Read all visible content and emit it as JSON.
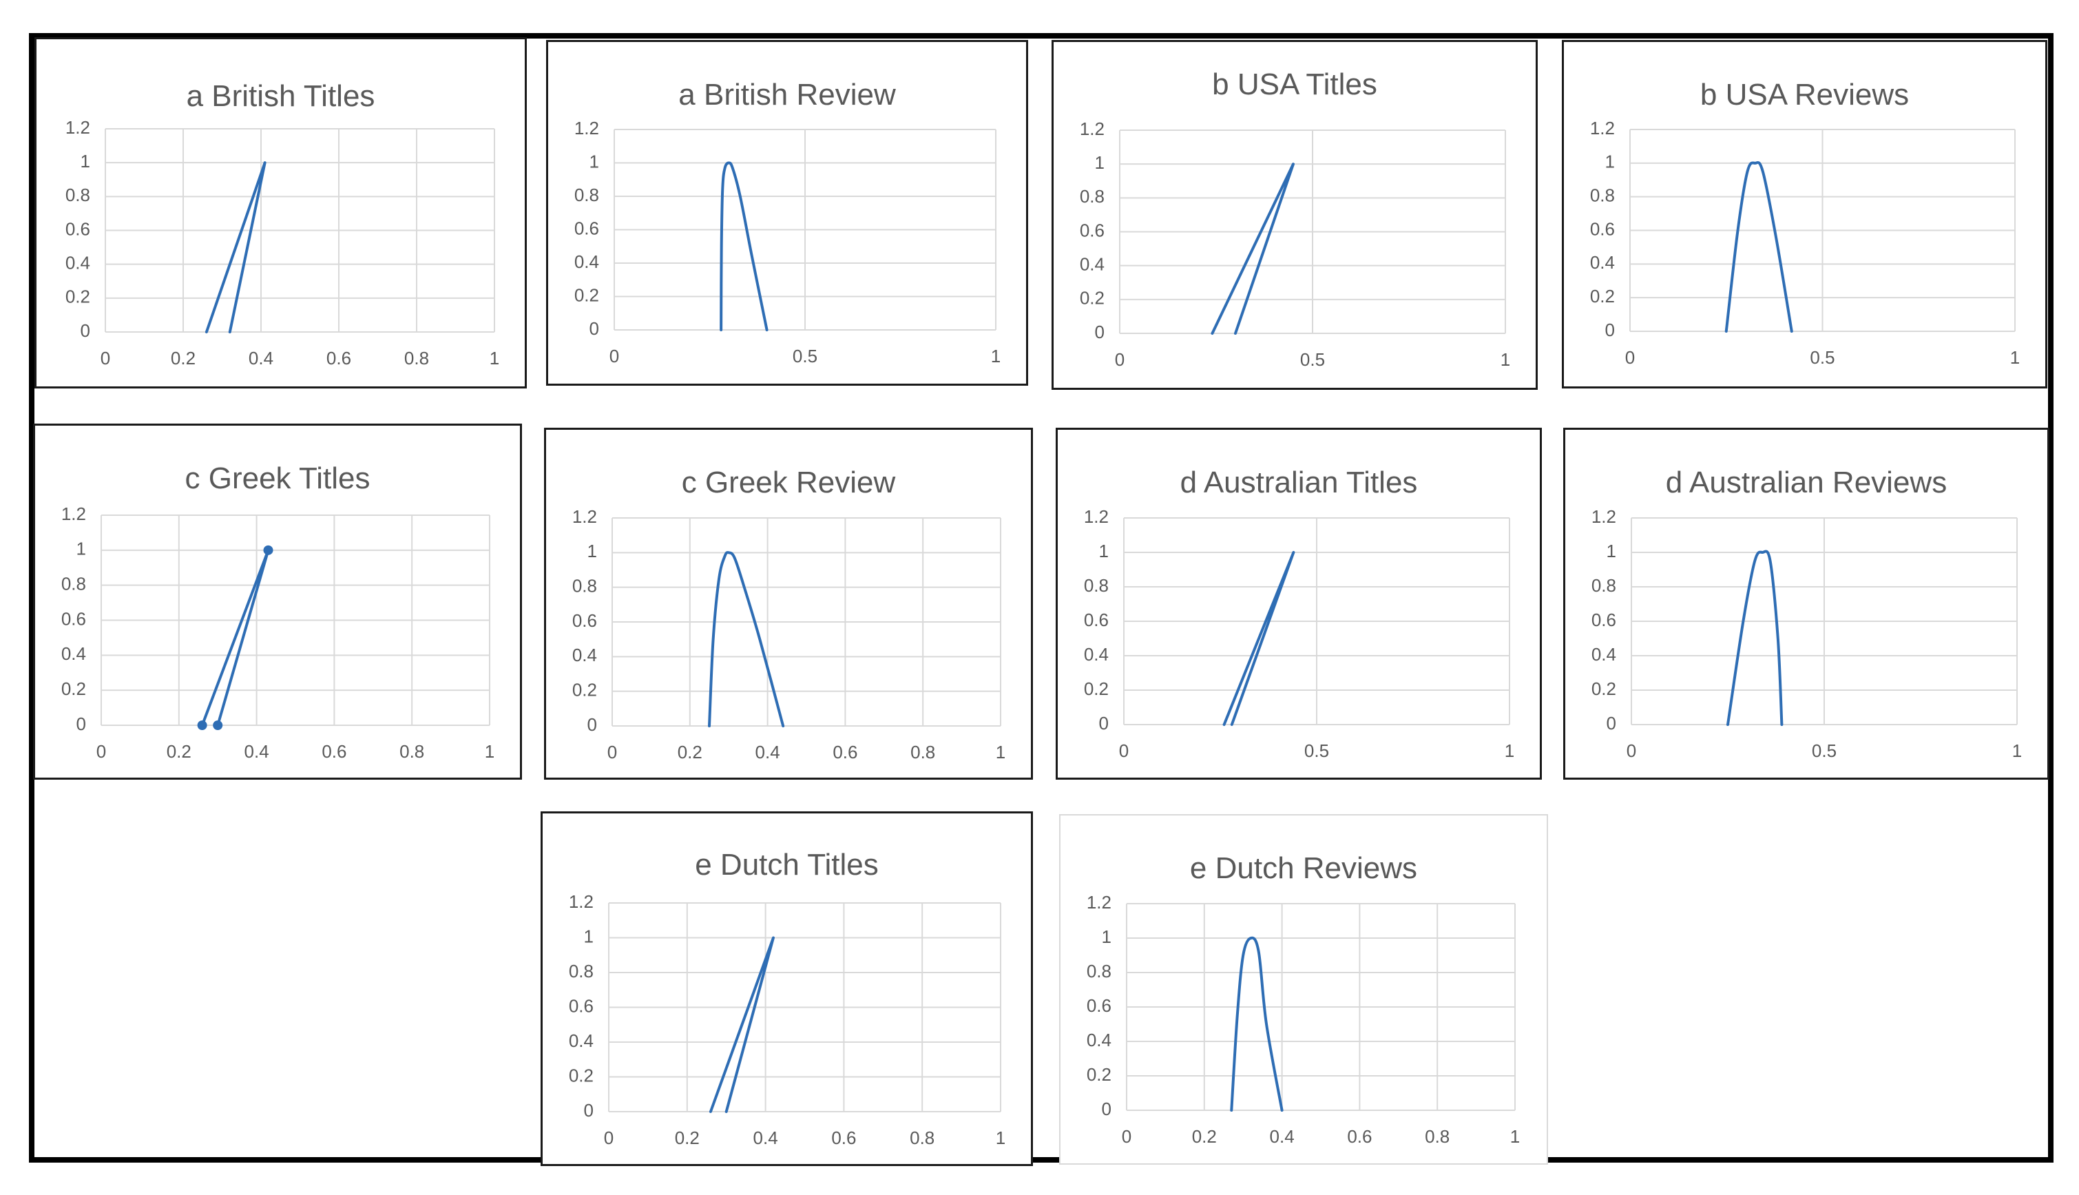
{
  "colors": {
    "series": "#2e6db4",
    "grid": "#d9d9d9",
    "text": "#595959",
    "frame": "#000000"
  },
  "chart_data": [
    {
      "type": "line",
      "title": "a British Titles",
      "xlim": [
        0,
        1
      ],
      "ylim": [
        0,
        1.2
      ],
      "xticks": [
        "0",
        "0.2",
        "0.4",
        "0.6",
        "0.8",
        "1"
      ],
      "yticks": [
        "0",
        "0.2",
        "0.4",
        "0.6",
        "0.8",
        "1",
        "1.2"
      ],
      "series": [
        {
          "x": [
            0.26,
            0.41,
            0.32
          ],
          "y": [
            0,
            1,
            0
          ]
        }
      ]
    },
    {
      "type": "line",
      "title": "a British Review",
      "xlim": [
        0,
        1
      ],
      "ylim": [
        0,
        1.2
      ],
      "xticks": [
        "0",
        "0.5",
        "1"
      ],
      "yticks": [
        "0",
        "0.2",
        "0.4",
        "0.6",
        "0.8",
        "1",
        "1.2"
      ],
      "series": [
        {
          "x": [
            0.28,
            0.281,
            0.284,
            0.29,
            0.3,
            0.31,
            0.33,
            0.36,
            0.4
          ],
          "y": [
            0,
            0.5,
            0.85,
            0.97,
            1.0,
            0.97,
            0.8,
            0.45,
            0
          ]
        }
      ]
    },
    {
      "type": "line",
      "title": "b USA Titles",
      "xlim": [
        0,
        1
      ],
      "ylim": [
        0,
        1.2
      ],
      "xticks": [
        "0",
        "0.5",
        "1"
      ],
      "yticks": [
        "0",
        "0.2",
        "0.4",
        "0.6",
        "0.8",
        "1",
        "1.2"
      ],
      "series": [
        {
          "x": [
            0.24,
            0.45,
            0.3
          ],
          "y": [
            0,
            1,
            0
          ]
        }
      ]
    },
    {
      "type": "line",
      "title": "b USA Reviews",
      "xlim": [
        0,
        1
      ],
      "ylim": [
        0,
        1.2
      ],
      "xticks": [
        "0",
        "0.5",
        "1"
      ],
      "yticks": [
        "0",
        "0.2",
        "0.4",
        "0.6",
        "0.8",
        "1",
        "1.2"
      ],
      "series": [
        {
          "x": [
            0.25,
            0.28,
            0.305,
            0.325,
            0.345,
            0.38,
            0.42
          ],
          "y": [
            0,
            0.6,
            0.95,
            1.0,
            0.95,
            0.55,
            0
          ]
        }
      ]
    },
    {
      "type": "line",
      "title": "c Greek Titles",
      "xlim": [
        0,
        1
      ],
      "ylim": [
        0,
        1.2
      ],
      "xticks": [
        "0",
        "0.2",
        "0.4",
        "0.6",
        "0.8",
        "1"
      ],
      "yticks": [
        "0",
        "0.2",
        "0.4",
        "0.6",
        "0.8",
        "1",
        "1.2"
      ],
      "markers": true,
      "series": [
        {
          "x": [
            0.26,
            0.43,
            0.3
          ],
          "y": [
            0,
            1,
            0
          ]
        }
      ]
    },
    {
      "type": "line",
      "title": "c Greek Review",
      "xlim": [
        0,
        1
      ],
      "ylim": [
        0,
        1.2
      ],
      "xticks": [
        "0",
        "0.2",
        "0.4",
        "0.6",
        "0.8",
        "1"
      ],
      "yticks": [
        "0",
        "0.2",
        "0.4",
        "0.6",
        "0.8",
        "1",
        "1.2"
      ],
      "series": [
        {
          "x": [
            0.25,
            0.26,
            0.275,
            0.29,
            0.3,
            0.315,
            0.34,
            0.38,
            0.44
          ],
          "y": [
            0,
            0.5,
            0.85,
            0.98,
            1.0,
            0.97,
            0.8,
            0.5,
            0
          ]
        }
      ]
    },
    {
      "type": "line",
      "title": "d Australian Titles",
      "xlim": [
        0,
        1
      ],
      "ylim": [
        0,
        1.2
      ],
      "xticks": [
        "0",
        "0.5",
        "1"
      ],
      "yticks": [
        "0",
        "0.2",
        "0.4",
        "0.6",
        "0.8",
        "1",
        "1.2"
      ],
      "series": [
        {
          "x": [
            0.26,
            0.44,
            0.28
          ],
          "y": [
            0,
            1,
            0
          ]
        }
      ]
    },
    {
      "type": "line",
      "title": "d Australian Reviews",
      "xlim": [
        0,
        1
      ],
      "ylim": [
        0,
        1.2
      ],
      "xticks": [
        "0",
        "0.5",
        "1"
      ],
      "yticks": [
        "0",
        "0.2",
        "0.4",
        "0.6",
        "0.8",
        "1",
        "1.2"
      ],
      "series": [
        {
          "x": [
            0.25,
            0.29,
            0.32,
            0.34,
            0.36,
            0.38,
            0.39
          ],
          "y": [
            0,
            0.6,
            0.95,
            1.0,
            0.95,
            0.5,
            0
          ]
        }
      ]
    },
    {
      "type": "line",
      "title": "e Dutch Titles",
      "xlim": [
        0,
        1
      ],
      "ylim": [
        0,
        1.2
      ],
      "xticks": [
        "0",
        "0.2",
        "0.4",
        "0.6",
        "0.8",
        "1"
      ],
      "yticks": [
        "0",
        "0.2",
        "0.4",
        "0.6",
        "0.8",
        "1",
        "1.2"
      ],
      "series": [
        {
          "x": [
            0.26,
            0.42,
            0.3
          ],
          "y": [
            0,
            1,
            0
          ]
        }
      ]
    },
    {
      "type": "line",
      "title": "e Dutch Reviews",
      "xlim": [
        0,
        1
      ],
      "ylim": [
        0,
        1.2
      ],
      "xticks": [
        "0",
        "0.2",
        "0.4",
        "0.6",
        "0.8",
        "1"
      ],
      "yticks": [
        "0",
        "0.2",
        "0.4",
        "0.6",
        "0.8",
        "1",
        "1.2"
      ],
      "series": [
        {
          "x": [
            0.27,
            0.285,
            0.3,
            0.32,
            0.34,
            0.36,
            0.4
          ],
          "y": [
            0,
            0.55,
            0.9,
            1.0,
            0.92,
            0.5,
            0
          ]
        }
      ]
    }
  ]
}
